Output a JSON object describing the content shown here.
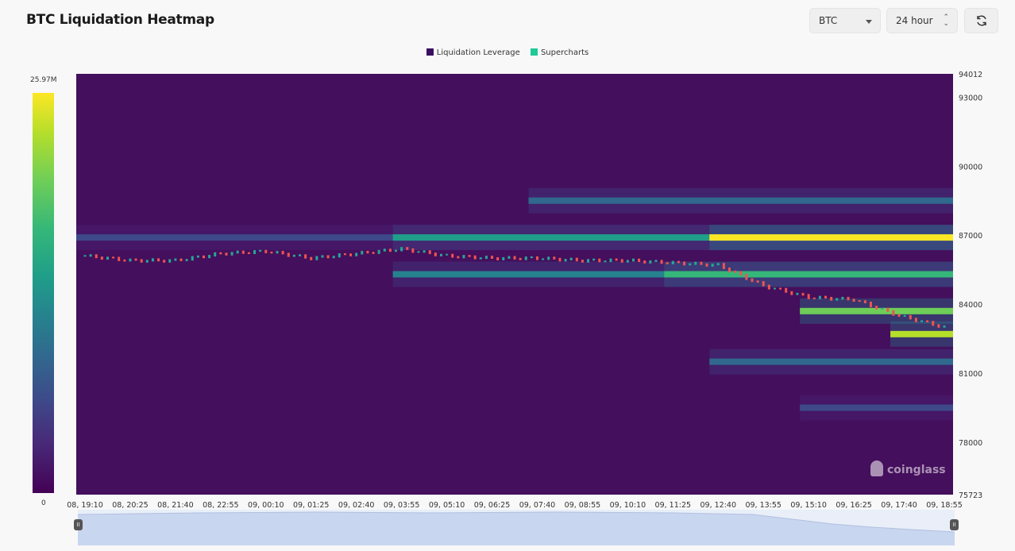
{
  "header": {
    "title": "BTC Liquidation Heatmap",
    "coin_select": "BTC",
    "range_select": "24 hour"
  },
  "legend": {
    "items": [
      {
        "label": "Liquidation Leverage",
        "color": "#3b0f5f"
      },
      {
        "label": "Supercharts",
        "color": "#20c997"
      }
    ]
  },
  "colorbar": {
    "max_label": "25.97M",
    "min_label": "0"
  },
  "watermark": "coinglass",
  "chart_data": {
    "type": "heatmap",
    "title": "BTC Liquidation Heatmap",
    "y_axis": {
      "min": 75723,
      "max": 94012,
      "ticks": [
        "94012",
        "93000",
        "90000",
        "87000",
        "84000",
        "81000",
        "78000",
        "75723"
      ]
    },
    "x_axis": {
      "ticks": [
        "08, 19:10",
        "08, 20:25",
        "08, 21:40",
        "08, 22:55",
        "09, 00:10",
        "09, 01:25",
        "09, 02:40",
        "09, 03:55",
        "09, 05:10",
        "09, 06:25",
        "09, 07:40",
        "09, 08:55",
        "09, 10:10",
        "09, 11:25",
        "09, 12:40",
        "09, 13:55",
        "09, 15:10",
        "09, 16:25",
        "09, 17:40",
        "09, 18:55"
      ]
    },
    "colorscale": {
      "min": 0,
      "max": 25970000,
      "label_max": "25.97M",
      "label_min": "0"
    },
    "price_series": {
      "name": "Liquidation Leverage",
      "x": [
        "08, 19:10",
        "08, 20:25",
        "08, 21:40",
        "08, 22:55",
        "09, 00:10",
        "09, 01:25",
        "09, 02:40",
        "09, 03:55",
        "09, 05:10",
        "09, 06:25",
        "09, 07:40",
        "09, 08:55",
        "09, 10:10",
        "09, 11:25",
        "09, 12:40",
        "09, 13:55",
        "09, 15:10",
        "09, 16:25",
        "09, 17:40",
        "09, 18:55"
      ],
      "y": [
        86100,
        85900,
        85900,
        86200,
        86300,
        86000,
        86200,
        86400,
        86100,
        86000,
        86000,
        85900,
        85900,
        85800,
        85700,
        84800,
        84300,
        84200,
        83500,
        83000
      ]
    },
    "liquidation_bands": [
      {
        "price": 86900,
        "from": "08, 19:10",
        "intensity": 0.25
      },
      {
        "price": 86900,
        "from": "09, 03:55",
        "intensity": 0.5
      },
      {
        "price": 86900,
        "from": "09, 12:40",
        "intensity": 0.95
      },
      {
        "price": 85300,
        "from": "09, 03:55",
        "intensity": 0.45
      },
      {
        "price": 85300,
        "from": "09, 11:25",
        "intensity": 0.7
      },
      {
        "price": 83700,
        "from": "09, 15:10",
        "intensity": 0.8
      },
      {
        "price": 82700,
        "from": "09, 17:40",
        "intensity": 0.85
      },
      {
        "price": 88500,
        "from": "09, 07:40",
        "intensity": 0.35
      },
      {
        "price": 81500,
        "from": "09, 12:40",
        "intensity": 0.35
      },
      {
        "price": 79500,
        "from": "09, 15:10",
        "intensity": 0.25
      }
    ],
    "series": [
      {
        "name": "Liquidation Leverage",
        "color": "#3b0f5f"
      },
      {
        "name": "Supercharts",
        "color": "#20c997"
      }
    ],
    "legend_position": "top-center",
    "grid": false
  }
}
